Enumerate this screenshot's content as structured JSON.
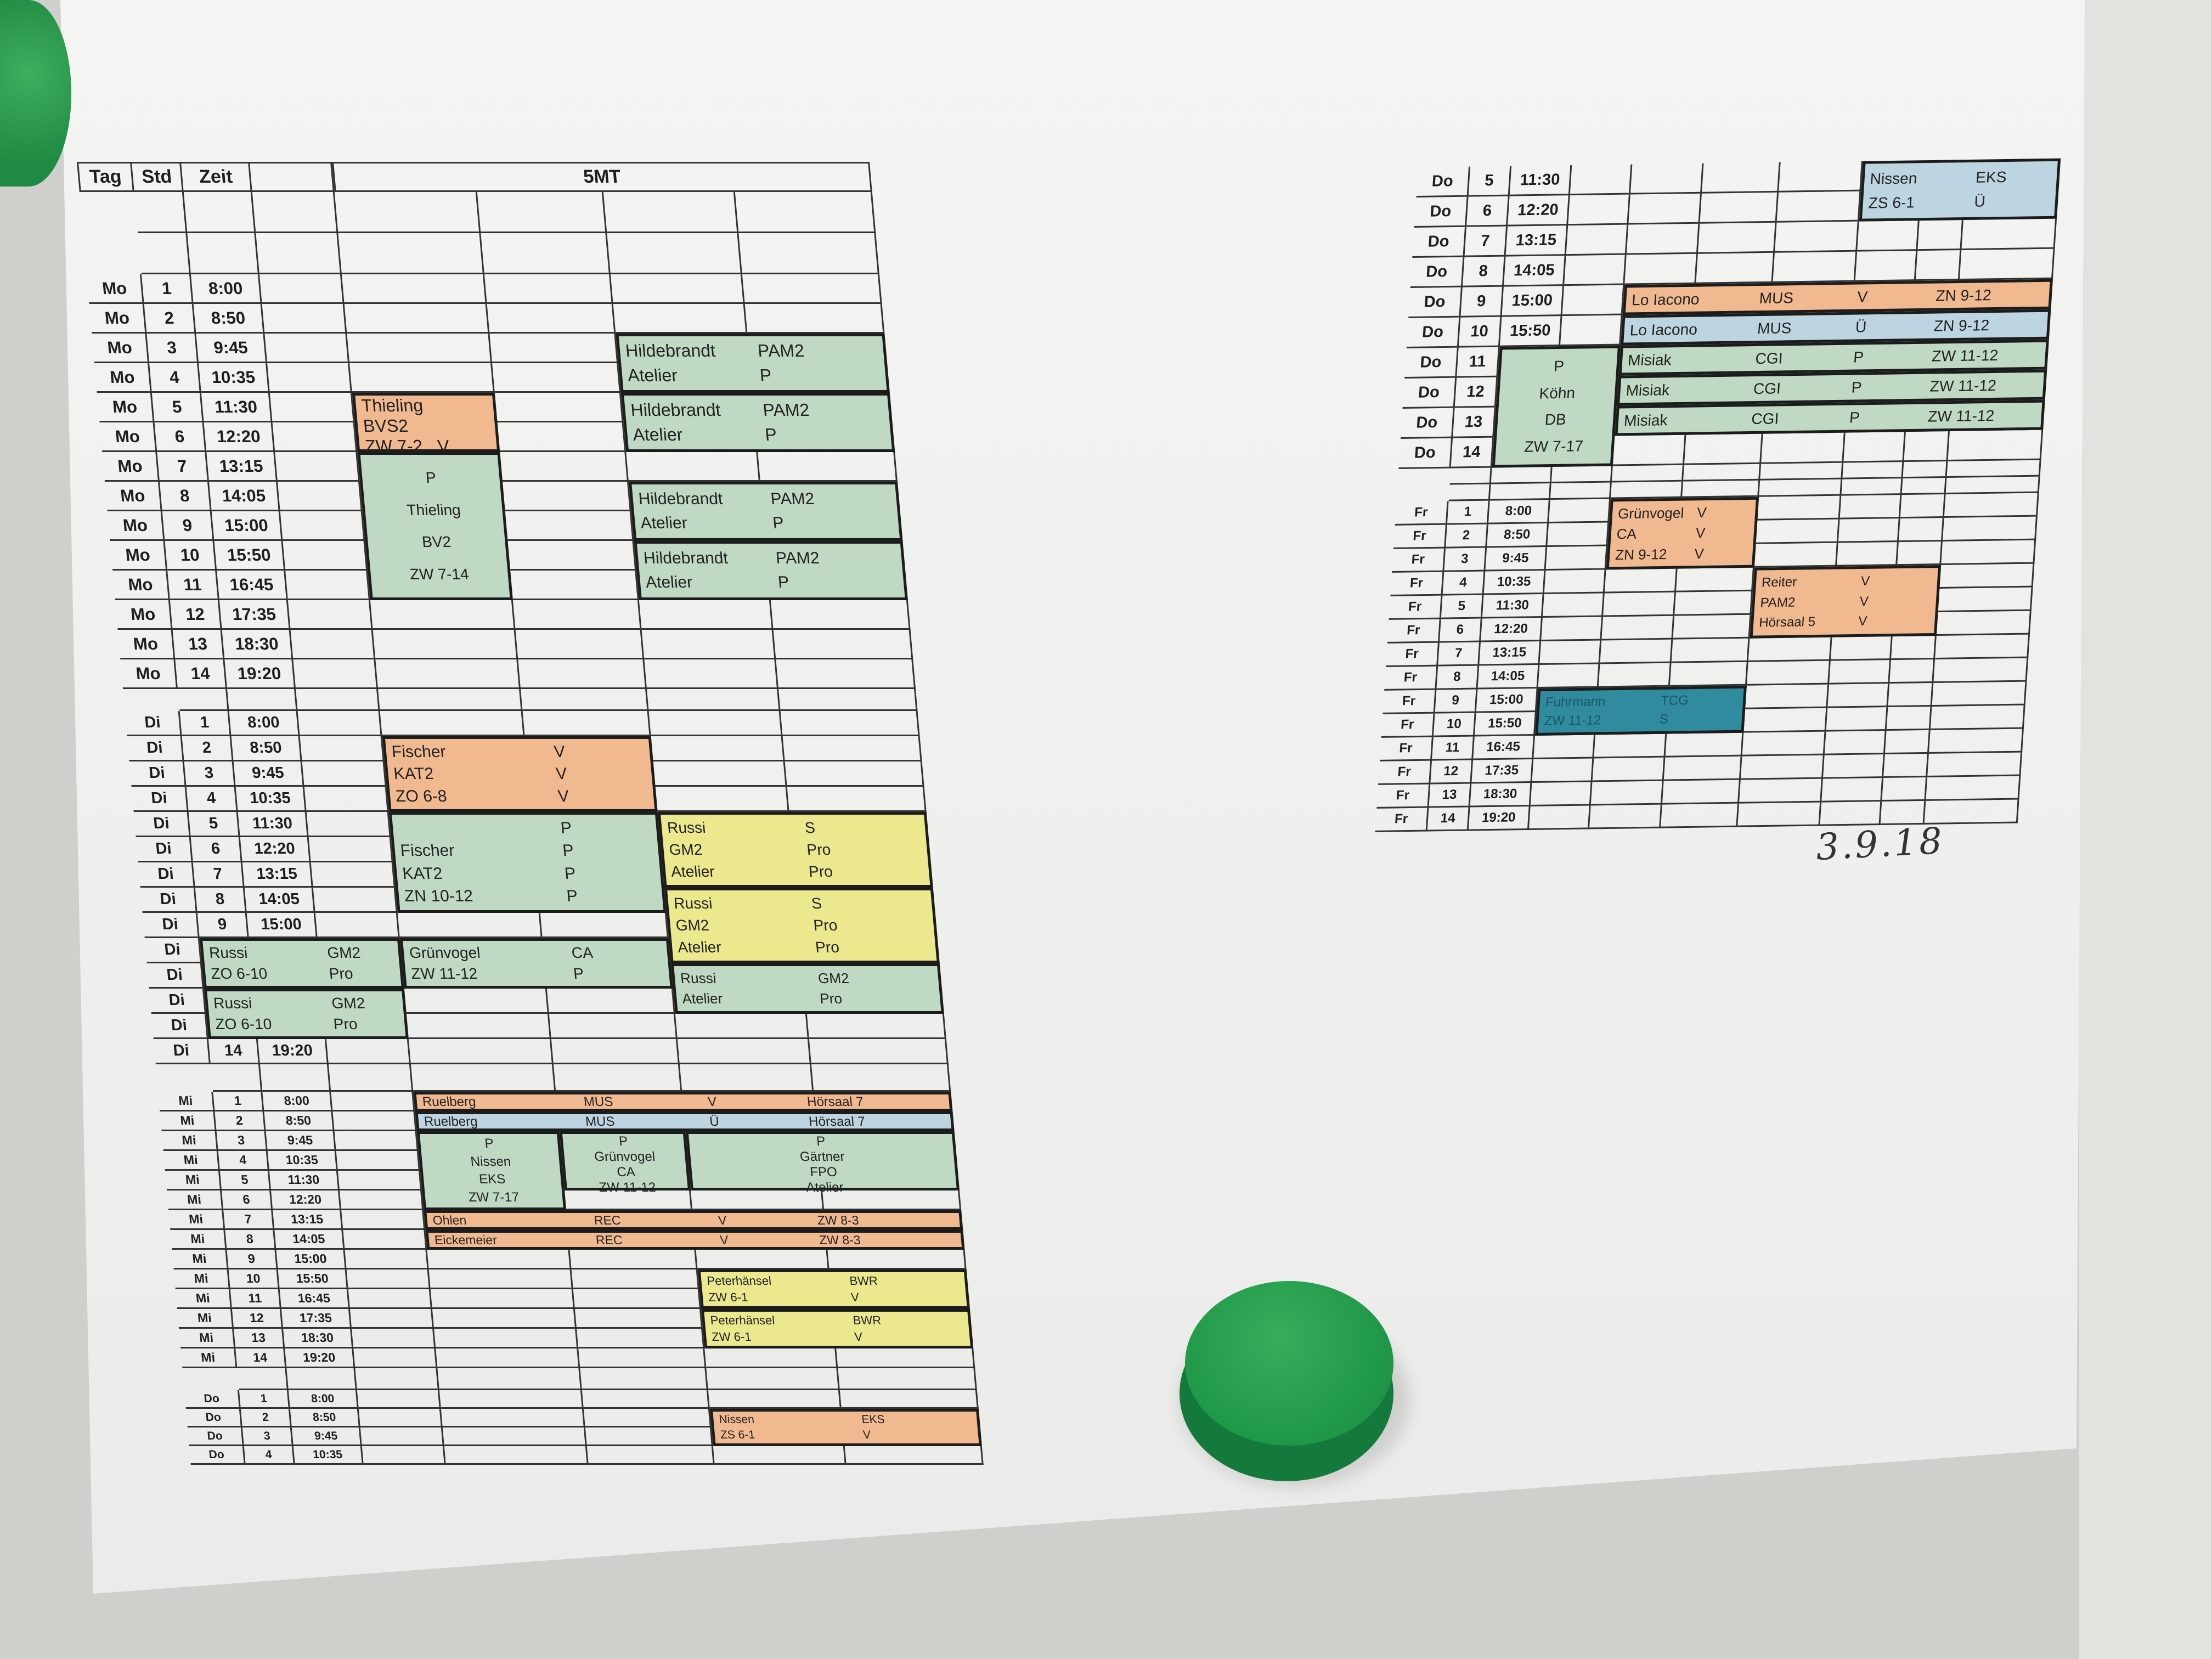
{
  "colors": {
    "lecture": "#f1b98f",
    "practical": "#bfd9c4",
    "exercise": "#bcd5e0",
    "project": "#ebe88e",
    "seminar": "#2f8b9d",
    "paper": "#f4f4f2",
    "magnet": "#22994c"
  },
  "left_table": {
    "header": {
      "tag": "Tag",
      "std": "Std",
      "zeit": "Zeit",
      "class": "5MT"
    },
    "sections": [
      {
        "rows": [
          {
            "tag": "Mo",
            "std": "1",
            "zeit": "8:00"
          },
          {
            "tag": "Mo",
            "std": "2",
            "zeit": "8:50"
          },
          {
            "tag": "Mo",
            "std": "3",
            "zeit": "9:45"
          },
          {
            "tag": "Mo",
            "std": "4",
            "zeit": "10:35"
          },
          {
            "tag": "Mo",
            "std": "5",
            "zeit": "11:30"
          },
          {
            "tag": "Mo",
            "std": "6",
            "zeit": "12:20"
          },
          {
            "tag": "Mo",
            "std": "7",
            "zeit": "13:15"
          },
          {
            "tag": "Mo",
            "std": "8",
            "zeit": "14:05"
          },
          {
            "tag": "Mo",
            "std": "9",
            "zeit": "15:00"
          },
          {
            "tag": "Mo",
            "std": "10",
            "zeit": "15:50"
          },
          {
            "tag": "Mo",
            "std": "11",
            "zeit": "16:45"
          },
          {
            "tag": "Mo",
            "std": "12",
            "zeit": "17:35"
          },
          {
            "tag": "Mo",
            "std": "13",
            "zeit": "18:30"
          },
          {
            "tag": "Mo",
            "std": "14",
            "zeit": "19:20"
          }
        ]
      },
      {
        "rows": [
          {
            "tag": "Di",
            "std": "1",
            "zeit": "8:00"
          },
          {
            "tag": "Di",
            "std": "2",
            "zeit": "8:50"
          },
          {
            "tag": "Di",
            "std": "3",
            "zeit": "9:45"
          },
          {
            "tag": "Di",
            "std": "4",
            "zeit": "10:35"
          },
          {
            "tag": "Di",
            "std": "5",
            "zeit": "11:30"
          },
          {
            "tag": "Di",
            "std": "6",
            "zeit": "12:20"
          },
          {
            "tag": "Di",
            "std": "7",
            "zeit": "13:15"
          },
          {
            "tag": "Di",
            "std": "8",
            "zeit": "14:05"
          },
          {
            "tag": "Di",
            "std": "9",
            "zeit": "15:00"
          },
          {
            "tag": "Di"
          },
          {
            "tag": "Di"
          },
          {
            "tag": "Di"
          },
          {
            "tag": "Di"
          },
          {
            "tag": "Di",
            "std": "14",
            "zeit": "19:20"
          }
        ]
      },
      {
        "rows": [
          {
            "tag": "Mi",
            "std": "1",
            "zeit": "8:00"
          },
          {
            "tag": "Mi",
            "std": "2",
            "zeit": "8:50"
          },
          {
            "tag": "Mi",
            "std": "3",
            "zeit": "9:45"
          },
          {
            "tag": "Mi",
            "std": "4",
            "zeit": "10:35"
          },
          {
            "tag": "Mi",
            "std": "5",
            "zeit": "11:30"
          },
          {
            "tag": "Mi",
            "std": "6",
            "zeit": "12:20"
          },
          {
            "tag": "Mi",
            "std": "7",
            "zeit": "13:15"
          },
          {
            "tag": "Mi",
            "std": "8",
            "zeit": "14:05"
          },
          {
            "tag": "Mi",
            "std": "9",
            "zeit": "15:00"
          },
          {
            "tag": "Mi",
            "std": "10",
            "zeit": "15:50"
          },
          {
            "tag": "Mi",
            "std": "11",
            "zeit": "16:45"
          },
          {
            "tag": "Mi",
            "std": "12",
            "zeit": "17:35"
          },
          {
            "tag": "Mi",
            "std": "13",
            "zeit": "18:30"
          },
          {
            "tag": "Mi",
            "std": "14",
            "zeit": "19:20"
          }
        ]
      },
      {
        "rows": [
          {
            "tag": "Do",
            "std": "1",
            "zeit": "8:00"
          },
          {
            "tag": "Do",
            "std": "2",
            "zeit": "8:50"
          },
          {
            "tag": "Do",
            "std": "3",
            "zeit": "9:45"
          },
          {
            "tag": "Do",
            "std": "4",
            "zeit": "10:35"
          }
        ]
      }
    ],
    "blocks": [
      {
        "type": "lecture",
        "lines": [
          [
            "Thieling"
          ],
          [
            "BVS2"
          ],
          [
            "ZW 7-2",
            "V"
          ]
        ]
      },
      {
        "type": "practical",
        "lines": [
          [
            "P"
          ],
          [
            "Thieling"
          ],
          [
            "BV2"
          ],
          [
            "ZW 7-14"
          ]
        ]
      },
      {
        "type": "practical",
        "lines": [
          [
            "Hildebrandt",
            "PAM2"
          ],
          [
            "Atelier",
            "P"
          ]
        ]
      },
      {
        "type": "practical",
        "lines": [
          [
            "Hildebrandt",
            "PAM2"
          ],
          [
            "Atelier",
            "P"
          ]
        ]
      },
      {
        "type": "practical",
        "lines": [
          [
            "Hildebrandt",
            "PAM2"
          ],
          [
            "Atelier",
            "P"
          ]
        ]
      },
      {
        "type": "practical",
        "lines": [
          [
            "Hildebrandt",
            "PAM2"
          ],
          [
            "Atelier",
            "P"
          ]
        ]
      },
      {
        "type": "lecture",
        "lines": [
          [
            "Fischer",
            "V"
          ],
          [
            "KAT2",
            "V"
          ],
          [
            "ZO 6-8",
            "V"
          ]
        ]
      },
      {
        "type": "practical",
        "lines": [
          [
            "",
            "P"
          ],
          [
            "Fischer",
            "P"
          ],
          [
            "KAT2",
            "P"
          ],
          [
            "ZN 10-12",
            "P"
          ]
        ]
      },
      {
        "type": "project",
        "lines": [
          [
            "Russi",
            "S"
          ],
          [
            "GM2",
            "Pro"
          ],
          [
            "Atelier",
            "Pro"
          ]
        ]
      },
      {
        "type": "project",
        "lines": [
          [
            "Russi",
            "S"
          ],
          [
            "GM2",
            "Pro"
          ],
          [
            "Atelier",
            "Pro"
          ]
        ]
      },
      {
        "type": "practical",
        "lines": [
          [
            "Russi",
            "GM2"
          ],
          [
            "Atelier",
            "Pro"
          ]
        ]
      },
      {
        "type": "practical",
        "lines": [
          [
            "Russi",
            "GM2"
          ],
          [
            "ZO 6-10",
            "Pro"
          ]
        ]
      },
      {
        "type": "practical",
        "lines": [
          [
            "Russi",
            "GM2"
          ],
          [
            "ZO 6-10",
            "Pro"
          ]
        ]
      },
      {
        "type": "practical",
        "lines": [
          [
            "Grünvogel",
            "CA"
          ],
          [
            "ZW 11-12",
            "P"
          ]
        ]
      },
      {
        "type": "lecture",
        "lines": [
          [
            "Ruelberg",
            "MUS",
            "V",
            "Hörsaal 7"
          ]
        ]
      },
      {
        "type": "exercise",
        "lines": [
          [
            "Ruelberg",
            "MUS",
            "Ü",
            "Hörsaal 7"
          ]
        ]
      },
      {
        "type": "practical",
        "lines": [
          [
            "P"
          ],
          [
            "Nissen"
          ],
          [
            "EKS"
          ],
          [
            "ZW 7-17"
          ]
        ]
      },
      {
        "type": "practical",
        "lines": [
          [
            "P"
          ],
          [
            "Grünvogel"
          ],
          [
            "CA"
          ],
          [
            "ZW 11-12"
          ]
        ]
      },
      {
        "type": "practical",
        "lines": [
          [
            "P"
          ],
          [
            "Gärtner"
          ],
          [
            "FPO"
          ],
          [
            "Atelier"
          ]
        ]
      },
      {
        "type": "lecture",
        "lines": [
          [
            "Ohlen",
            "REC",
            "V",
            "ZW 8-3"
          ]
        ]
      },
      {
        "type": "lecture",
        "lines": [
          [
            "Eickemeier",
            "REC",
            "V",
            "ZW 8-3"
          ]
        ]
      },
      {
        "type": "project",
        "lines": [
          [
            "Peterhänsel",
            "BWR"
          ],
          [
            "ZW 6-1",
            "V"
          ]
        ]
      },
      {
        "type": "project",
        "lines": [
          [
            "Peterhänsel",
            "BWR"
          ],
          [
            "ZW 6-1",
            "V"
          ]
        ]
      },
      {
        "type": "lecture",
        "lines": [
          [
            "Nissen",
            "EKS"
          ],
          [
            "ZS 6-1",
            "V"
          ]
        ]
      }
    ]
  },
  "right_table": {
    "sections": [
      {
        "rows": [
          {
            "tag": "Do",
            "std": "5",
            "zeit": "11:30"
          },
          {
            "tag": "Do",
            "std": "6",
            "zeit": "12:20"
          },
          {
            "tag": "Do",
            "std": "7",
            "zeit": "13:15"
          },
          {
            "tag": "Do",
            "std": "8",
            "zeit": "14:05"
          },
          {
            "tag": "Do",
            "std": "9",
            "zeit": "15:00"
          },
          {
            "tag": "Do",
            "std": "10",
            "zeit": "15:50"
          },
          {
            "tag": "Do",
            "std": "11"
          },
          {
            "tag": "Do",
            "std": "12"
          },
          {
            "tag": "Do",
            "std": "13"
          },
          {
            "tag": "Do",
            "std": "14"
          }
        ]
      },
      {
        "rows": [
          {
            "tag": "Fr",
            "std": "1",
            "zeit": "8:00"
          },
          {
            "tag": "Fr",
            "std": "2",
            "zeit": "8:50"
          },
          {
            "tag": "Fr",
            "std": "3",
            "zeit": "9:45"
          },
          {
            "tag": "Fr",
            "std": "4",
            "zeit": "10:35"
          },
          {
            "tag": "Fr",
            "std": "5",
            "zeit": "11:30"
          },
          {
            "tag": "Fr",
            "std": "6",
            "zeit": "12:20"
          },
          {
            "tag": "Fr",
            "std": "7",
            "zeit": "13:15"
          },
          {
            "tag": "Fr",
            "std": "8",
            "zeit": "14:05"
          },
          {
            "tag": "Fr",
            "std": "9",
            "zeit": "15:00"
          },
          {
            "tag": "Fr",
            "std": "10",
            "zeit": "15:50"
          },
          {
            "tag": "Fr",
            "std": "11",
            "zeit": "16:45"
          },
          {
            "tag": "Fr",
            "std": "12",
            "zeit": "17:35"
          },
          {
            "tag": "Fr",
            "std": "13",
            "zeit": "18:30"
          },
          {
            "tag": "Fr",
            "std": "14",
            "zeit": "19:20"
          }
        ]
      }
    ],
    "blocks": [
      {
        "type": "exercise",
        "lines": [
          [
            "Nissen",
            "EKS"
          ],
          [
            "ZS 6-1",
            "Ü"
          ]
        ]
      },
      {
        "type": "lecture",
        "lines": [
          [
            "Lo Iacono",
            "MUS",
            "V",
            "ZN 9-12"
          ]
        ]
      },
      {
        "type": "exercise",
        "lines": [
          [
            "Lo Iacono",
            "MUS",
            "Ü",
            "ZN 9-12"
          ]
        ]
      },
      {
        "type": "practical",
        "lines": [
          [
            "Misiak",
            "CGI",
            "P",
            "ZW 11-12"
          ]
        ]
      },
      {
        "type": "practical",
        "lines": [
          [
            "Misiak",
            "CGI",
            "P",
            "ZW 11-12"
          ]
        ]
      },
      {
        "type": "practical",
        "lines": [
          [
            "Misiak",
            "CGI",
            "P",
            "ZW 11-12"
          ]
        ]
      },
      {
        "type": "practical",
        "lines": [
          [
            "P"
          ],
          [
            "Köhn"
          ],
          [
            "DB"
          ],
          [
            "ZW 7-17"
          ]
        ]
      },
      {
        "type": "lecture",
        "lines": [
          [
            "Grünvogel",
            "V"
          ],
          [
            "CA",
            "V"
          ],
          [
            "ZN 9-12",
            "V"
          ]
        ]
      },
      {
        "type": "lecture",
        "lines": [
          [
            "Reiter",
            "V"
          ],
          [
            "PAM2",
            "V"
          ],
          [
            "Hörsaal 5",
            "V"
          ]
        ]
      },
      {
        "type": "seminar",
        "lines": [
          [
            "Fuhrmann",
            "TCG"
          ],
          [
            "ZW 11-12",
            "S"
          ]
        ]
      }
    ]
  },
  "date_note": "3.9.18"
}
